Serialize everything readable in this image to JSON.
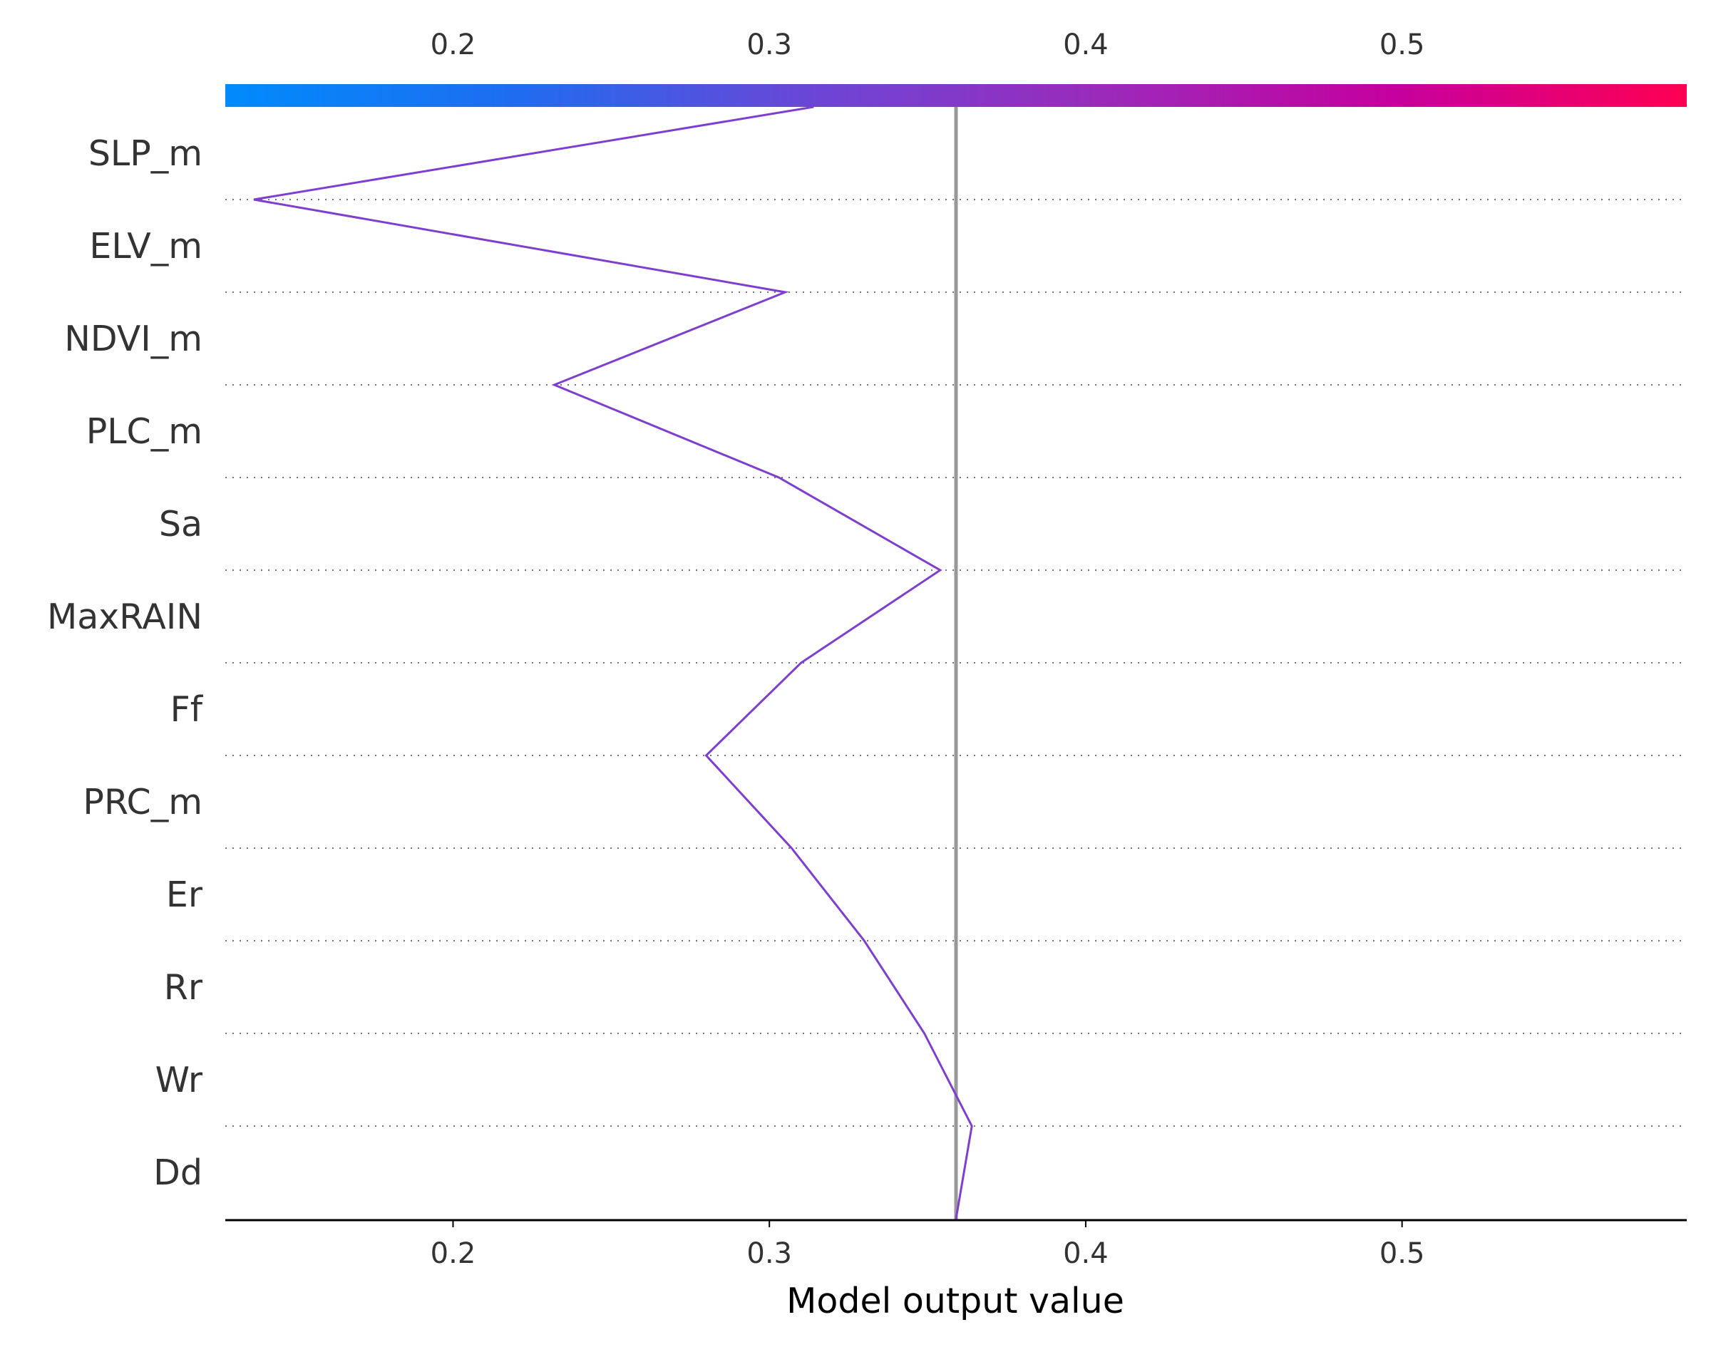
{
  "chart_data": {
    "type": "line",
    "chart_kind": "decision-plot",
    "xlabel": "Model output value",
    "xlim": [
      0.128,
      0.59
    ],
    "base_value": 0.359,
    "xticks": [
      0.2,
      0.3,
      0.4,
      0.5
    ],
    "tick_labels": [
      "0.2",
      "0.3",
      "0.4",
      "0.5"
    ],
    "features": [
      "SLP_m",
      "ELV_m",
      "NDVI_m",
      "PLC_m",
      "Sa",
      "MaxRAIN",
      "Ff",
      "PRC_m",
      "Er",
      "Rr",
      "Wr",
      "Dd"
    ],
    "path_values": [
      0.314,
      0.137,
      0.305,
      0.232,
      0.303,
      0.354,
      0.31,
      0.28,
      0.307,
      0.33,
      0.349,
      0.364,
      0.359
    ],
    "line_color": "#7e3fce",
    "base_line_color": "#999999",
    "colorbar": {
      "stops": [
        "#008bfb",
        "#1f6cf0",
        "#6b46d6",
        "#9b2aba",
        "#c5009e",
        "#ff0052"
      ],
      "range": [
        0.128,
        0.59
      ]
    },
    "grid": "dotted horizontal"
  }
}
